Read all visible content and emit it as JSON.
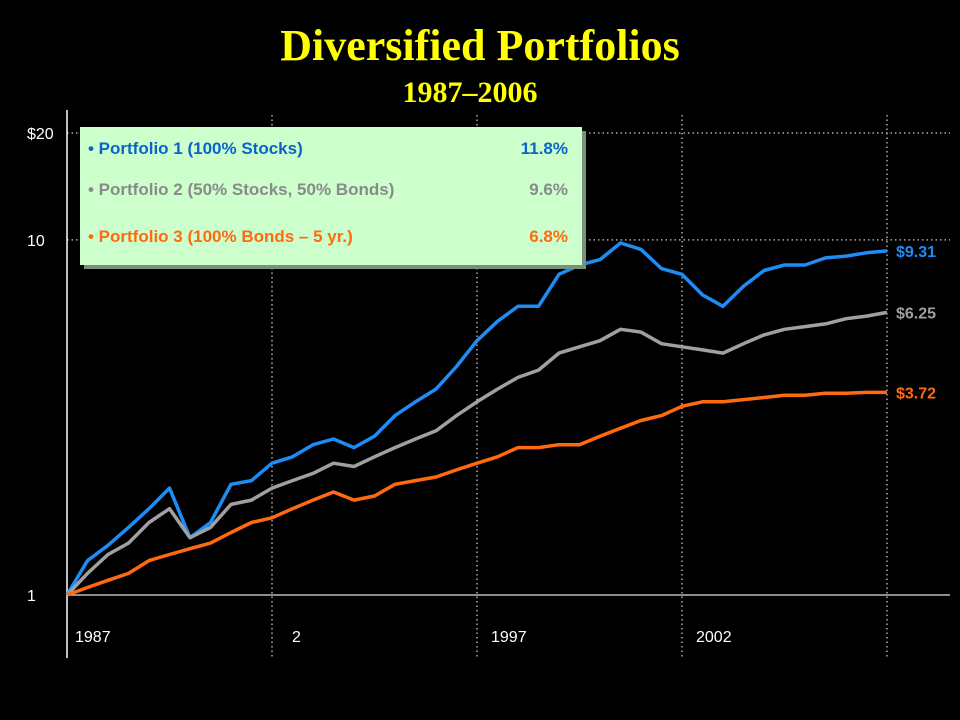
{
  "title": "Diversified Portfolios",
  "subtitle": "1987–2006",
  "colors": {
    "background": "#000000",
    "title": "#ffff00",
    "axis": "#ffffff",
    "legend_bg": "#ccffcc"
  },
  "chart_data": {
    "type": "line",
    "title": "Diversified Portfolios",
    "subtitle": "1987–2006",
    "y_scale": "log",
    "ylim": [
      1,
      20
    ],
    "y_ticks": [
      "$20",
      "10",
      "1"
    ],
    "x_tick_labels": [
      "1987",
      "2",
      "1997",
      "2002"
    ],
    "xlim": [
      1987,
      2007
    ],
    "grid": "vertical and $10 horizontal dotted lines",
    "legend_position": "top-left",
    "series": [
      {
        "name": "Portfolio 1 (100% Stocks)",
        "annualized_return": "11.8%",
        "end_label": "$9.31",
        "color": "#1e8cf5",
        "x": [
          1987.0,
          1987.5,
          1988.0,
          1988.5,
          1989.0,
          1989.5,
          1990.0,
          1990.5,
          1991.0,
          1991.5,
          1992.0,
          1992.5,
          1993.0,
          1993.5,
          1994.0,
          1994.5,
          1995.0,
          1995.5,
          1996.0,
          1996.5,
          1997.0,
          1997.5,
          1998.0,
          1998.5,
          1999.0,
          1999.5,
          2000.0,
          2000.5,
          2001.0,
          2001.5,
          2002.0,
          2002.5,
          2003.0,
          2003.5,
          2004.0,
          2004.5,
          2005.0,
          2005.5,
          2006.0,
          2006.5,
          2007.0
        ],
        "y": [
          1.0,
          1.25,
          1.38,
          1.55,
          1.75,
          2.0,
          1.45,
          1.6,
          2.05,
          2.1,
          2.35,
          2.45,
          2.65,
          2.75,
          2.6,
          2.8,
          3.2,
          3.5,
          3.8,
          4.4,
          5.2,
          5.9,
          6.5,
          6.5,
          8.0,
          8.5,
          8.8,
          9.8,
          9.4,
          8.3,
          8.0,
          7.0,
          6.5,
          7.4,
          8.2,
          8.5,
          8.5,
          8.9,
          9.0,
          9.2,
          9.31
        ]
      },
      {
        "name": "Portfolio 2 (50% Stocks, 50% Bonds)",
        "annualized_return": "9.6%",
        "end_label": "$6.25",
        "color": "#a0a0a0",
        "x": [
          1987.0,
          1987.5,
          1988.0,
          1988.5,
          1989.0,
          1989.5,
          1990.0,
          1990.5,
          1991.0,
          1991.5,
          1992.0,
          1992.5,
          1993.0,
          1993.5,
          1994.0,
          1994.5,
          1995.0,
          1995.5,
          1996.0,
          1996.5,
          1997.0,
          1997.5,
          1998.0,
          1998.5,
          1999.0,
          1999.5,
          2000.0,
          2000.5,
          2001.0,
          2001.5,
          2002.0,
          2002.5,
          2003.0,
          2003.5,
          2004.0,
          2004.5,
          2005.0,
          2005.5,
          2006.0,
          2006.5,
          2007.0
        ],
        "y": [
          1.0,
          1.15,
          1.3,
          1.4,
          1.6,
          1.75,
          1.45,
          1.55,
          1.8,
          1.85,
          2.0,
          2.1,
          2.2,
          2.35,
          2.3,
          2.45,
          2.6,
          2.75,
          2.9,
          3.2,
          3.5,
          3.8,
          4.1,
          4.3,
          4.8,
          5.0,
          5.2,
          5.6,
          5.5,
          5.1,
          5.0,
          4.9,
          4.8,
          5.1,
          5.4,
          5.6,
          5.7,
          5.8,
          6.0,
          6.1,
          6.25
        ]
      },
      {
        "name": "Portfolio 3 (100% Bonds – 5 yr.)",
        "annualized_return": "6.8%",
        "end_label": "$3.72",
        "color": "#ff6a10",
        "x": [
          1987.0,
          1987.5,
          1988.0,
          1988.5,
          1989.0,
          1989.5,
          1990.0,
          1990.5,
          1991.0,
          1991.5,
          1992.0,
          1992.5,
          1993.0,
          1993.5,
          1994.0,
          1994.5,
          1995.0,
          1995.5,
          1996.0,
          1996.5,
          1997.0,
          1997.5,
          1998.0,
          1998.5,
          1999.0,
          1999.5,
          2000.0,
          2000.5,
          2001.0,
          2001.5,
          2002.0,
          2002.5,
          2003.0,
          2003.5,
          2004.0,
          2004.5,
          2005.0,
          2005.5,
          2006.0,
          2006.5,
          2007.0
        ],
        "y": [
          1.0,
          1.05,
          1.1,
          1.15,
          1.25,
          1.3,
          1.35,
          1.4,
          1.5,
          1.6,
          1.65,
          1.75,
          1.85,
          1.95,
          1.85,
          1.9,
          2.05,
          2.1,
          2.15,
          2.25,
          2.35,
          2.45,
          2.6,
          2.6,
          2.65,
          2.65,
          2.8,
          2.95,
          3.1,
          3.2,
          3.4,
          3.5,
          3.5,
          3.55,
          3.6,
          3.65,
          3.65,
          3.7,
          3.7,
          3.72,
          3.72
        ]
      }
    ]
  }
}
